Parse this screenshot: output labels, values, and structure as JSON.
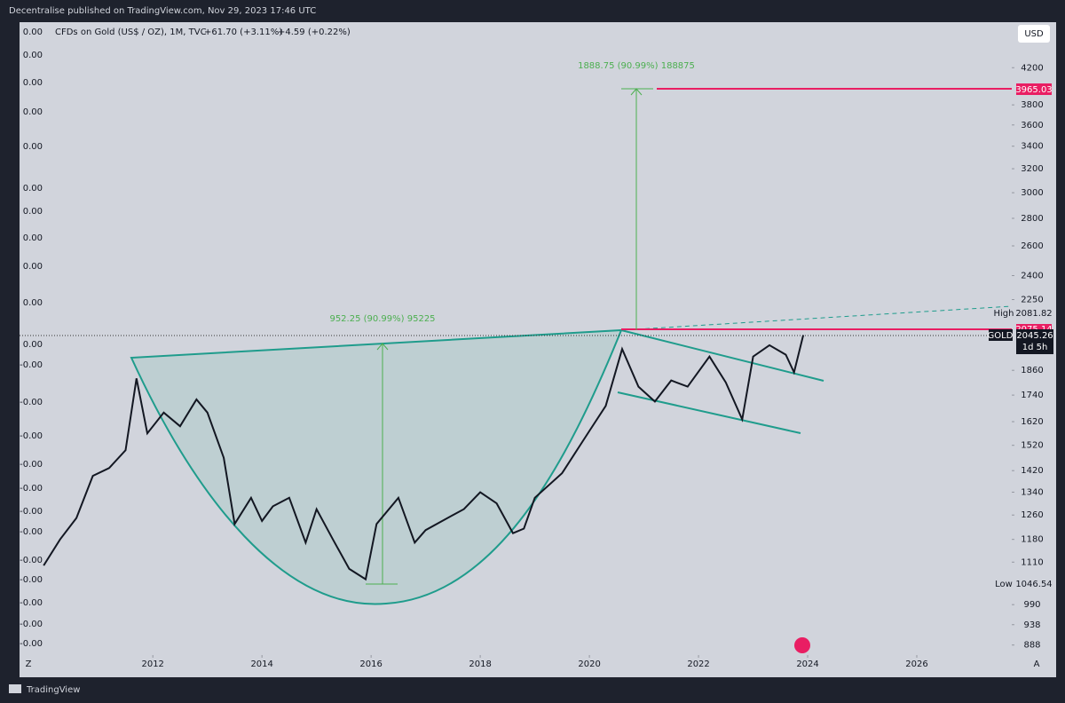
{
  "header": {
    "published": "Decentralise published on TradingView.com, Nov 29, 2023 17:46 UTC",
    "symbol": "CFDs on Gold (US$ / OZ), 1M, TVC",
    "change_day": "+61.70 (+3.11%)",
    "change_last": "+4.59 (+0.22%)",
    "currency": "USD"
  },
  "chart_data": {
    "type": "line",
    "color": "#131722",
    "log_scale": true,
    "x": [
      2010.0,
      2010.3,
      2010.6,
      2010.9,
      2011.2,
      2011.5,
      2011.7,
      2011.9,
      2012.2,
      2012.5,
      2012.8,
      2013.0,
      2013.3,
      2013.5,
      2013.8,
      2014.0,
      2014.2,
      2014.5,
      2014.8,
      2015.0,
      2015.3,
      2015.6,
      2015.9,
      2016.1,
      2016.5,
      2016.8,
      2017.0,
      2017.5,
      2017.7,
      2018.0,
      2018.3,
      2018.6,
      2018.8,
      2019.0,
      2019.5,
      2019.8,
      2020.0,
      2020.3,
      2020.6,
      2020.9,
      2021.2,
      2021.5,
      2021.8,
      2022.2,
      2022.5,
      2022.8,
      2023.0,
      2023.3,
      2023.6,
      2023.75,
      2023.92
    ],
    "values": [
      1100,
      1180,
      1250,
      1400,
      1430,
      1500,
      1820,
      1570,
      1660,
      1600,
      1720,
      1660,
      1470,
      1230,
      1320,
      1240,
      1290,
      1320,
      1170,
      1280,
      1180,
      1090,
      1060,
      1230,
      1320,
      1170,
      1210,
      1260,
      1280,
      1340,
      1300,
      1200,
      1215,
      1320,
      1410,
      1510,
      1580,
      1690,
      1970,
      1780,
      1710,
      1810,
      1780,
      1930,
      1800,
      1630,
      1930,
      1990,
      1940,
      1850,
      2045
    ],
    "xlim": [
      2009.85,
      2027.74
    ],
    "xticks": [
      2012,
      2014,
      2016,
      2018,
      2020,
      2022,
      2024,
      2026
    ],
    "ylim": [
      850,
      4580
    ],
    "yticks": [
      888,
      938,
      990,
      1110,
      1180,
      1260,
      1340,
      1420,
      1520,
      1620,
      1740,
      1860,
      2250,
      2400,
      2600,
      2800,
      3000,
      3200,
      3400,
      3600,
      3800,
      4200
    ],
    "annotations": {
      "upper_target": "1888.75 (90.99%) 188875",
      "cup_depth": "952.25 (90.99%) 95225",
      "target_price": "3965.03",
      "high_label": "High",
      "high_value": "2081.82",
      "line_price": "2075.14",
      "symbol_tag": "GOLD",
      "last_price": "2045.26",
      "countdown": "1d 5h",
      "low_label": "Low",
      "low_value": "1046.54"
    }
  },
  "left_scale_labels": [
    "0.00",
    "0.00",
    "0.00",
    "0.00",
    "0.00",
    "0.00",
    "0.00",
    "0.00",
    "0.00",
    "0.00",
    "0.00",
    "-0.00",
    "-0.00",
    "-0.00",
    "-0.00",
    "-0.00",
    "-0.00",
    "-0.00",
    "-0.00",
    "-0.00",
    "-0.00",
    "-0.00",
    "-0.00"
  ],
  "footer": {
    "left_corner": "Z",
    "right_corner": "A",
    "brand": "TradingView"
  }
}
